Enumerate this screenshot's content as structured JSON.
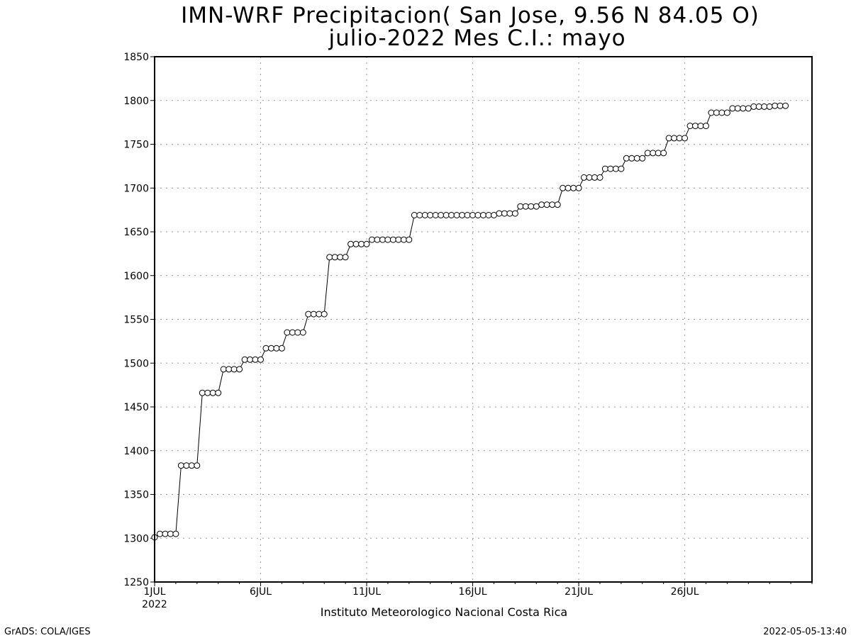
{
  "chart_data": {
    "type": "line",
    "title": "IMN-WRF  Precipitacion( San Jose, 9.56  N 84.05  O)",
    "subtitle": "julio-2022 Mes C.I.: mayo",
    "xlabel": "Instituto Meteorologico Nacional Costa Rica",
    "ylabel": "",
    "ylim": [
      1250,
      1850
    ],
    "yticks": [
      1250,
      1300,
      1350,
      1400,
      1450,
      1500,
      1550,
      1600,
      1650,
      1700,
      1750,
      1800,
      1850
    ],
    "xlim": [
      1,
      31
    ],
    "xticks": [
      {
        "day": 1,
        "label": "1JUL",
        "sublabel": "2022"
      },
      {
        "day": 6,
        "label": "6JUL",
        "sublabel": ""
      },
      {
        "day": 11,
        "label": "11JUL",
        "sublabel": ""
      },
      {
        "day": 16,
        "label": "16JUL",
        "sublabel": ""
      },
      {
        "day": 21,
        "label": "21JUL",
        "sublabel": ""
      },
      {
        "day": 26,
        "label": "26JUL",
        "sublabel": ""
      }
    ],
    "grid": true,
    "marker": "open-circle",
    "step_hours": 6,
    "series": [
      {
        "values": [
          1301,
          1305,
          1305,
          1305,
          1305,
          1383,
          1383,
          1383,
          1383,
          1466,
          1466,
          1466,
          1466,
          1493,
          1493,
          1493,
          1493,
          1504,
          1504,
          1504,
          1504,
          1517,
          1517,
          1517,
          1517,
          1535,
          1535,
          1535,
          1535,
          1556,
          1556,
          1556,
          1556,
          1621,
          1621,
          1621,
          1621,
          1636,
          1636,
          1636,
          1636,
          1641,
          1641,
          1641,
          1641,
          1641,
          1641,
          1641,
          1641,
          1669,
          1669,
          1669,
          1669,
          1669,
          1669,
          1669,
          1669,
          1669,
          1669,
          1669,
          1669,
          1669,
          1669,
          1669,
          1669,
          1671,
          1671,
          1671,
          1671,
          1679,
          1679,
          1679,
          1679,
          1681,
          1681,
          1681,
          1681,
          1700,
          1700,
          1700,
          1700,
          1712,
          1712,
          1712,
          1712,
          1722,
          1722,
          1722,
          1722,
          1734,
          1734,
          1734,
          1734,
          1740,
          1740,
          1740,
          1740,
          1757,
          1757,
          1757,
          1757,
          1771,
          1771,
          1771,
          1771,
          1786,
          1786,
          1786,
          1786,
          1791,
          1791,
          1791,
          1791,
          1793,
          1793,
          1793,
          1793,
          1794,
          1794,
          1794
        ]
      }
    ]
  },
  "footer": {
    "left": "GrADS: COLA/IGES",
    "right": "2022-05-05-13:40"
  }
}
